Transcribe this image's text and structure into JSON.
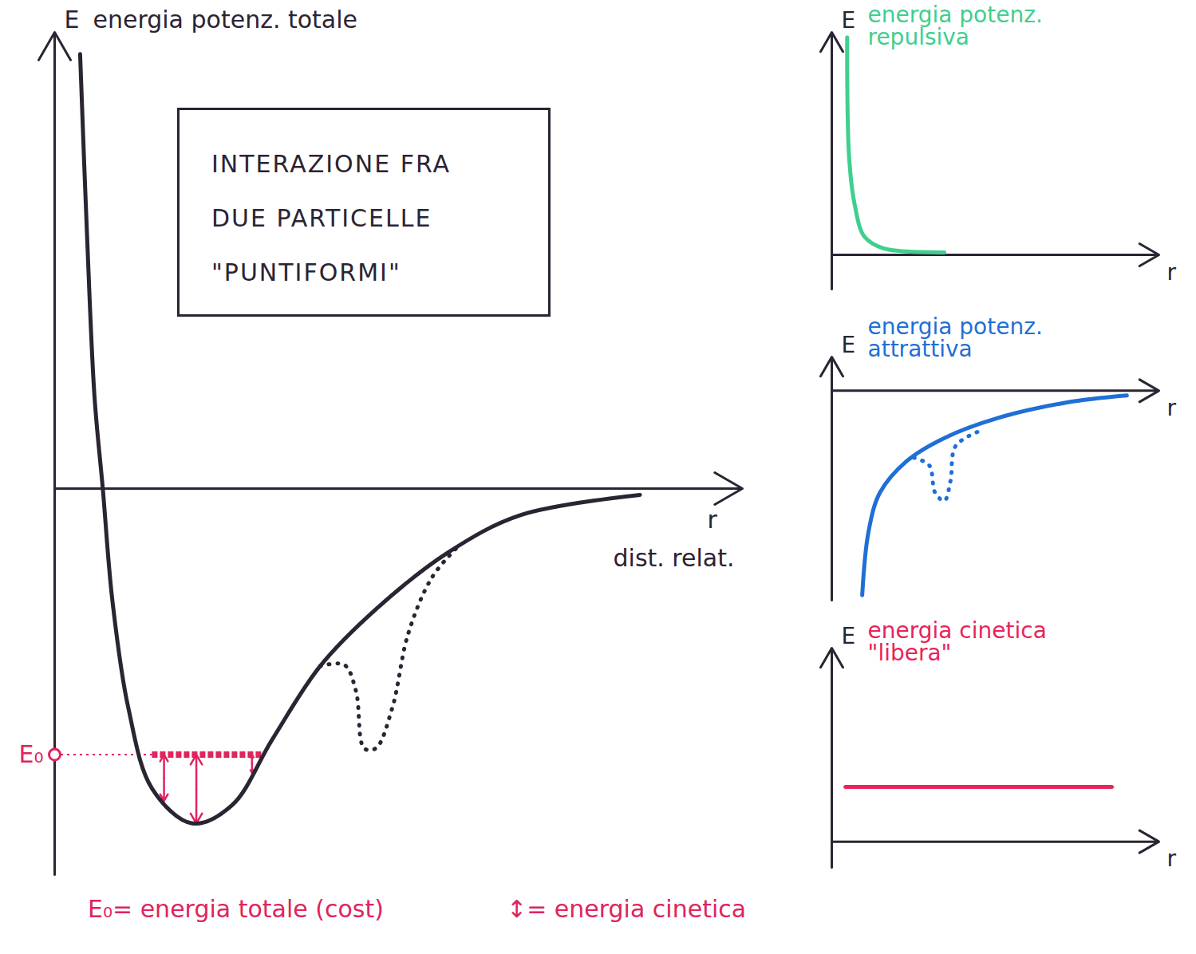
{
  "chart_data": [
    {
      "type": "line",
      "ylabel": "E",
      "title": "energia potenz. totale",
      "xlabel": "r",
      "xlabel_note": "dist. relat.",
      "box": [
        "INTERAZIONE FRA",
        "DUE PARTICELLE",
        "\"PUNTIFORMI\""
      ],
      "xlim": [
        0,
        10
      ],
      "ylim": [
        -5.5,
        6.5
      ],
      "origin": {
        "x": 0,
        "y": 0
      },
      "tick_labels": false,
      "series": [
        {
          "color": "#2b2433",
          "line_style": "solid",
          "x": [
            0.37,
            0.47,
            0.58,
            0.7,
            0.84,
            1.07,
            1.42,
            2.0,
            2.58,
            3.16,
            3.86,
            4.67,
            5.72,
            6.77,
            8.51
          ],
          "values": [
            6.19,
            3.63,
            1.3,
            0,
            -1.6,
            -3.12,
            -4.28,
            -4.77,
            -4.51,
            -3.58,
            -2.53,
            -1.72,
            -0.91,
            -0.38,
            -0.09
          ]
        },
        {
          "color": "#2b2433",
          "line_style": "dotted",
          "x": [
            3.86,
            4.21,
            4.38,
            4.5,
            4.67,
            4.91,
            5.14,
            5.49,
            5.9
          ],
          "values": [
            -2.53,
            -2.51,
            -2.88,
            -3.7,
            -3.7,
            -3.12,
            -2.07,
            -1.26,
            -0.79
          ]
        }
      ],
      "e0": {
        "label": "E₀",
        "value": -3.79,
        "x_range": [
          1.42,
          3.05
        ],
        "color": "#e0245e"
      },
      "kinetic_arrows": {
        "x": [
          1.59,
          2.06,
          2.87
        ],
        "values": [
          -4.45,
          -4.77,
          -4.05
        ]
      },
      "notes": [
        "E₀= energia totale (cost)",
        "↕= energia cinetica"
      ]
    },
    {
      "type": "line",
      "ylabel": "E",
      "title": "energia potenz. repulsiva",
      "xlabel": "r",
      "xlim": [
        0,
        10
      ],
      "ylim": [
        -1,
        6.5
      ],
      "origin": {
        "x": 0,
        "y": 0
      },
      "tick_labels": false,
      "series": [
        {
          "color": "#3fcf8e",
          "line_style": "solid",
          "x": [
            0.47,
            0.53,
            0.7,
            1.0,
            1.58,
            3.44
          ],
          "values": [
            6.35,
            2.86,
            1.47,
            0.53,
            0.19,
            0.07
          ]
        }
      ]
    },
    {
      "type": "line",
      "ylabel": "E",
      "title": "energia potenz. attrattiva",
      "xlabel": "r",
      "xlim": [
        0,
        10
      ],
      "ylim": [
        -6.2,
        1
      ],
      "origin": {
        "x": 0,
        "y": 0
      },
      "tick_labels": false,
      "series": [
        {
          "color": "#1f6fd6",
          "line_style": "solid",
          "x": [
            0.93,
            1.12,
            1.47,
            2.28,
            3.44,
            5.07,
            7.16,
            9.02
          ],
          "values": [
            -6.05,
            -4.19,
            -3.02,
            -2.09,
            -1.4,
            -0.81,
            -0.35,
            -0.14
          ]
        },
        {
          "color": "#1f6fd6",
          "line_style": "dotted",
          "x": [
            2.51,
            2.98,
            3.16,
            3.44,
            3.63,
            3.79,
            4.6
          ],
          "values": [
            -1.98,
            -2.21,
            -3.02,
            -3.26,
            -2.67,
            -1.63,
            -1.16
          ]
        }
      ]
    },
    {
      "type": "line",
      "ylabel": "E",
      "title": "energia cinetica \"libera\"",
      "xlabel": "r",
      "xlim": [
        0,
        10
      ],
      "ylim": [
        -0.8,
        6
      ],
      "origin": {
        "x": 0,
        "y": 0
      },
      "tick_labels": false,
      "series": [
        {
          "color": "#e8245a",
          "line_style": "solid",
          "x": [
            0.42,
            8.56
          ],
          "values": [
            1.7,
            1.7
          ]
        }
      ]
    }
  ]
}
